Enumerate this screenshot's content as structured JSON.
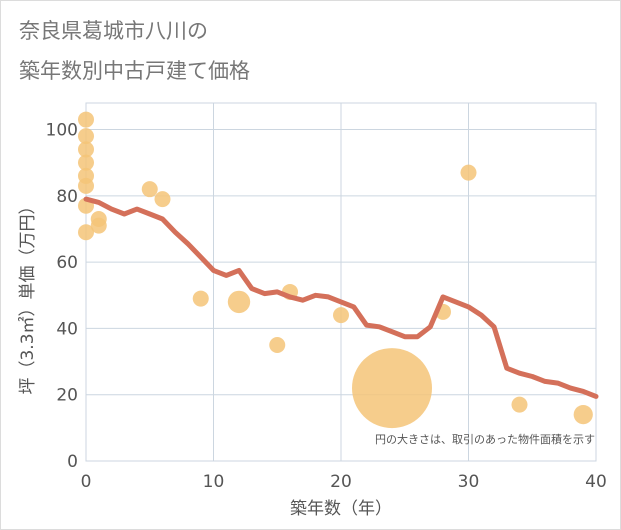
{
  "title_lines": [
    "奈良県葛城市八川の",
    "築年数別中古戸建て価格"
  ],
  "colors": {
    "bubble": "#f5c478",
    "line": "#d4705a",
    "grid": "#ccd6e0",
    "text": "#555555",
    "title": "#777777"
  },
  "chart_data": {
    "type": "scatter",
    "title": "奈良県葛城市八川の築年数別中古戸建て価格",
    "xlabel": "築年数（年）",
    "ylabel": "坪（3.3㎡）単価（万円）",
    "xlim": [
      0,
      40
    ],
    "ylim": [
      0,
      108
    ],
    "x_ticks": [
      0,
      10,
      20,
      30,
      40
    ],
    "y_ticks": [
      0,
      20,
      40,
      60,
      80,
      100
    ],
    "grid": true,
    "note": "円の大きさは、取引のあった物件面積を示す",
    "points": [
      {
        "x": 0,
        "y": 103,
        "size": 1
      },
      {
        "x": 0,
        "y": 98,
        "size": 1
      },
      {
        "x": 0,
        "y": 94,
        "size": 1
      },
      {
        "x": 0,
        "y": 90,
        "size": 1
      },
      {
        "x": 0,
        "y": 86,
        "size": 1
      },
      {
        "x": 0,
        "y": 83,
        "size": 1
      },
      {
        "x": 0,
        "y": 77,
        "size": 1
      },
      {
        "x": 0,
        "y": 69,
        "size": 1
      },
      {
        "x": 1,
        "y": 73,
        "size": 1
      },
      {
        "x": 1,
        "y": 71,
        "size": 1
      },
      {
        "x": 5,
        "y": 82,
        "size": 1
      },
      {
        "x": 6,
        "y": 79,
        "size": 1
      },
      {
        "x": 9,
        "y": 49,
        "size": 1
      },
      {
        "x": 12,
        "y": 48,
        "size": 1.4
      },
      {
        "x": 15,
        "y": 35,
        "size": 1
      },
      {
        "x": 16,
        "y": 51,
        "size": 1
      },
      {
        "x": 20,
        "y": 44,
        "size": 1
      },
      {
        "x": 24,
        "y": 22,
        "size": 5
      },
      {
        "x": 28,
        "y": 45,
        "size": 1
      },
      {
        "x": 30,
        "y": 87,
        "size": 1
      },
      {
        "x": 34,
        "y": 17,
        "size": 1
      },
      {
        "x": 39,
        "y": 14,
        "size": 1.2
      }
    ],
    "series": [
      {
        "type": "line",
        "x": [
          0,
          1,
          2,
          3,
          4,
          5,
          6,
          7,
          8,
          9,
          10,
          11,
          12,
          13,
          14,
          15,
          16,
          17,
          18,
          19,
          20,
          21,
          22,
          23,
          24,
          25,
          26,
          27,
          28,
          29,
          30,
          31,
          32,
          33,
          34,
          35,
          36,
          37,
          38,
          39,
          40
        ],
        "y": [
          79,
          78,
          76,
          74.5,
          76,
          74.5,
          73,
          69,
          65.5,
          61.5,
          57.5,
          56,
          57.5,
          52,
          50.5,
          51,
          49.5,
          48.5,
          50,
          49.5,
          48,
          46.5,
          41,
          40.5,
          39,
          37.5,
          37.5,
          40.5,
          49.5,
          48,
          46.5,
          44,
          40.5,
          28,
          26.5,
          25.5,
          24,
          23.5,
          22,
          21,
          19.5
        ]
      }
    ]
  }
}
